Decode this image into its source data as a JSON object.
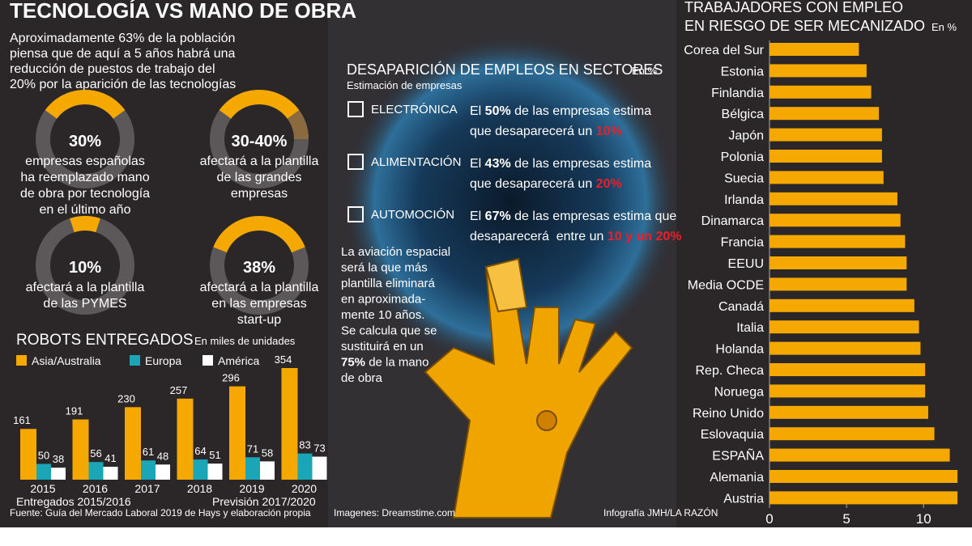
{
  "header": {
    "title": "TECNOLOGÍA VS MANO DE OBRA",
    "intro_lines": [
      "Aproximadamente 63% de la población",
      "piensa que de aquí a 5 años habrá una",
      "reducción de puestos de trabajo del",
      "20% por la aparición de las tecnologías"
    ]
  },
  "chart_data": [
    {
      "type": "donut",
      "values": [
        30
      ],
      "value_labels": [
        "30%"
      ],
      "colors": [
        "#f5a800"
      ],
      "ring_color": "#5c5759",
      "caption_lines": [
        "empresas españolas",
        "ha reemplazado mano",
        "de obra por tecnología",
        "en el último año"
      ]
    },
    {
      "type": "donut",
      "values": [
        30,
        10
      ],
      "center_label": "30-40%",
      "colors": [
        "#f5a800",
        "#8a6a3e"
      ],
      "ring_color": "#5c5759",
      "caption_lines": [
        "afectará a la plantilla",
        "de las grandes",
        "empresas"
      ]
    },
    {
      "type": "donut",
      "values": [
        10
      ],
      "value_labels": [
        "10%"
      ],
      "colors": [
        "#f5a800"
      ],
      "ring_color": "#5c5759",
      "caption_lines": [
        "afectará a la plantilla",
        "de las PYMES"
      ]
    },
    {
      "type": "donut",
      "values": [
        38
      ],
      "value_labels": [
        "38%"
      ],
      "colors": [
        "#f5a800"
      ],
      "ring_color": "#5c5759",
      "caption_lines": [
        "afectará a la plantilla",
        "en las empresas",
        "start-up"
      ]
    },
    {
      "type": "bar",
      "title": "ROBOTS ENTREGADOS",
      "subtitle": "En miles de unidades",
      "categories": [
        "2015",
        "2016",
        "2017",
        "2018",
        "2019",
        "2020"
      ],
      "series": [
        {
          "name": "Asia/Australia",
          "color": "#f5a800",
          "values": [
            161,
            191,
            230,
            257,
            296,
            354
          ]
        },
        {
          "name": "Europa",
          "color": "#1aa6b7",
          "values": [
            50,
            56,
            61,
            64,
            71,
            83
          ]
        },
        {
          "name": "América",
          "color": "#ffffff",
          "values": [
            38,
            41,
            48,
            51,
            58,
            73
          ]
        }
      ],
      "footnotes": [
        "Entregados 2015/2016",
        "Previsión 2017/2020"
      ]
    },
    {
      "type": "hbar",
      "title_lines": [
        "TRABAJADORES CON EMPLEO",
        "EN RIESGO DE SER MECANIZADO"
      ],
      "unit": "En %",
      "categories": [
        "Corea del Sur",
        "Estonia",
        "Finlandia",
        "Bélgica",
        "Japón",
        "Polonia",
        "Suecia",
        "Irlanda",
        "Dinamarca",
        "Francia",
        "EEUU",
        "Media OCDE",
        "Canadá",
        "Italia",
        "Holanda",
        "Rep. Checa",
        "Noruega",
        "Reino Unido",
        "Eslovaquia",
        "ESPAÑA",
        "Alemania",
        "Austria"
      ],
      "values": [
        5.8,
        6.3,
        6.6,
        7.1,
        7.3,
        7.3,
        7.4,
        8.3,
        8.5,
        8.8,
        8.9,
        8.9,
        9.4,
        9.7,
        9.8,
        10.1,
        10.1,
        10.3,
        10.7,
        11.7,
        12.2,
        12.2
      ],
      "color": "#f5a800",
      "xlim": [
        0,
        12.3
      ],
      "xticks": [
        0,
        5,
        10
      ],
      "grid": false
    }
  ],
  "sectors": {
    "title": "DESAPARICIÓN DE EMPLEOS EN SECTORES",
    "unit": "En %",
    "subtitle": "Estimación de empresas",
    "items": [
      {
        "name": "ELECTRÓNICA",
        "lines": [
          [
            "El ",
            {
              "t": "50%",
              "em": "bold"
            },
            " de las empresas estima"
          ],
          [
            "que desaparecerá un ",
            {
              "t": "10%",
              "em": "red"
            }
          ]
        ]
      },
      {
        "name": "ALIMENTACIÓN",
        "lines": [
          [
            "El ",
            {
              "t": "43%",
              "em": "bold"
            },
            " de las empresas estima"
          ],
          [
            "que desaparecerá un ",
            {
              "t": "20%",
              "em": "red"
            }
          ]
        ]
      },
      {
        "name": "AUTOMOCIÓN",
        "lines": [
          [
            "El ",
            {
              "t": "67%",
              "em": "bold"
            },
            " de las empresas estima que"
          ],
          [
            "desaparecerá  entre un ",
            {
              "t": "10 y un 20%",
              "em": "red"
            }
          ]
        ]
      }
    ],
    "note_lines": [
      [
        "La aviación espacial"
      ],
      [
        "será la que más"
      ],
      [
        "plantilla eliminará"
      ],
      [
        "en aproximada-"
      ],
      [
        "mente 10 años."
      ],
      [
        "Se calcula que se"
      ],
      [
        "sustituirá en un"
      ],
      [
        {
          "t": "75%",
          "em": "bold"
        },
        " de la mano"
      ],
      [
        "de obra"
      ]
    ]
  },
  "footer": {
    "source": "Fuente: Guía del Mercado Laboral 2019 de Hays y elaboración propia",
    "images": "Imagenes: Dreamstime.com",
    "credit": "Infografía JMH/LA RAZÓN"
  }
}
